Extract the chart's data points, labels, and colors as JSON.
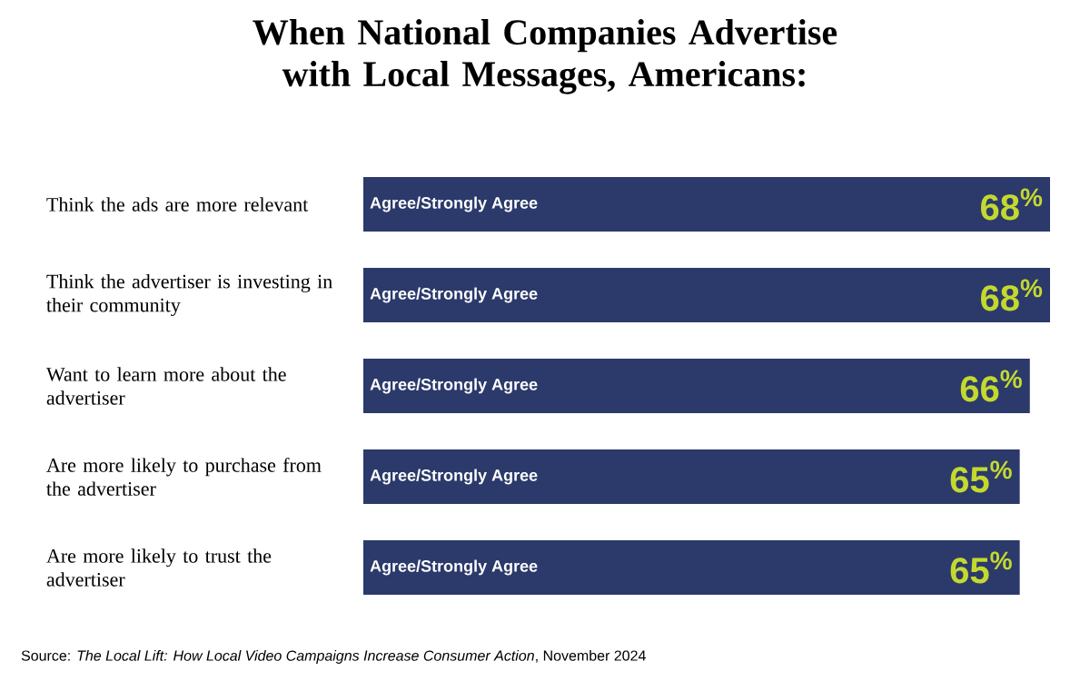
{
  "chart_data": {
    "type": "bar",
    "orientation": "horizontal",
    "title": "When National Companies Advertise with Local Messages, Americans:",
    "categories": [
      "Think the ads are more relevant",
      "Think the advertiser is investing in their community",
      "Want to learn more about the advertiser",
      "Are more likely to purchase from the advertiser",
      "Are more likely to trust the advertiser"
    ],
    "series": [
      {
        "name": "Agree/Strongly Agree",
        "color": "#2b3a6b",
        "values": [
          68,
          68,
          66,
          65,
          65
        ],
        "value_labels": [
          "68$^{%}$",
          "68$^{%}$",
          "66$^{%}$",
          "65$^{%}$",
          "65$^{%}$"
        ]
      }
    ],
    "annotations": [
      "Source: *The Local Lift: How Local Video Campaigns Increase Consumer Action*, November 2024"
    ]
  }
}
